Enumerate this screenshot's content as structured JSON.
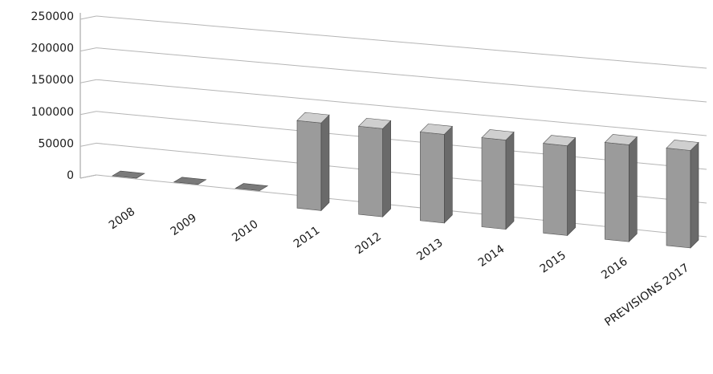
{
  "chart_data": {
    "type": "bar",
    "title": "",
    "xlabel": "",
    "ylabel": "",
    "categories": [
      "2008",
      "2009",
      "2010",
      "2011",
      "2012",
      "2013",
      "2014",
      "2015",
      "2016",
      "PREVISIONS 2017"
    ],
    "values": [
      0,
      0,
      0,
      135000,
      135000,
      135000,
      135000,
      135000,
      145000,
      145000
    ],
    "ylim": [
      0,
      250000
    ],
    "yticks": [
      "0",
      "50000",
      "100000",
      "150000",
      "200000",
      "250000"
    ],
    "grid": true,
    "legend": "none",
    "style": "3d",
    "colors": {
      "bar_front": "#9b9b9b",
      "bar_side": "#6a6a6a",
      "bar_top": "#cfcfcf",
      "grid": "#b5b5b5"
    }
  }
}
